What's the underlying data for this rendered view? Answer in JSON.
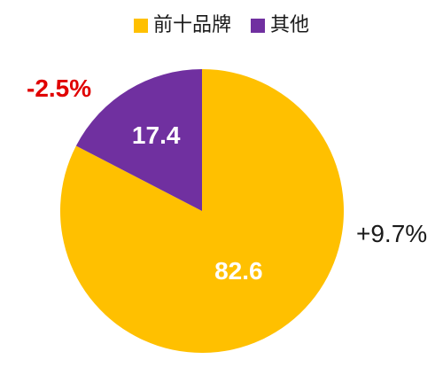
{
  "chart_data": {
    "type": "pie",
    "legend_position": "top",
    "series": [
      {
        "name": "前十品牌",
        "value": 82.6,
        "color": "#FFC000",
        "change": "+9.7%",
        "change_color": "#1a1a1a"
      },
      {
        "name": "其他",
        "value": 17.4,
        "color": "#7030A0",
        "change": "-2.5%",
        "change_color": "#E00000"
      }
    ]
  }
}
